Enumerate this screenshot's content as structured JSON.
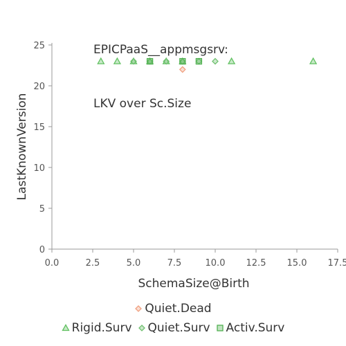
{
  "chart_data": {
    "type": "scatter",
    "title_lines": [
      "EPICPaaS__appmsgsrv:",
      "LKV over Sc.Size"
    ],
    "xlabel": "SchemaSize@Birth",
    "ylabel": "LastKnownVersion",
    "xlim": [
      0,
      17.5
    ],
    "ylim": [
      0,
      25
    ],
    "xticks": [
      0,
      2.5,
      5,
      7.5,
      10,
      12.5,
      15,
      17.5
    ],
    "xtick_labels": [
      "0.0",
      "2.5",
      "5.0",
      "7.5",
      "10.0",
      "12.5",
      "15.0",
      "17.5"
    ],
    "yticks": [
      0,
      5,
      10,
      15,
      20,
      25
    ],
    "ytick_labels": [
      "0",
      "5",
      "10",
      "15",
      "20",
      "25"
    ],
    "grid": false,
    "legend_position": "bottom",
    "series": [
      {
        "name": "Quiet.Dead",
        "marker": "diamond",
        "color": "#f0a080",
        "points": [
          [
            8,
            22
          ]
        ]
      },
      {
        "name": "Rigid.Surv",
        "marker": "triangle",
        "color": "#60c060",
        "points": [
          [
            3,
            23
          ],
          [
            4,
            23
          ],
          [
            5,
            23
          ],
          [
            6,
            23
          ],
          [
            7,
            23
          ],
          [
            8,
            23
          ],
          [
            11,
            23
          ],
          [
            16,
            23
          ]
        ]
      },
      {
        "name": "Quiet.Surv",
        "marker": "diamond",
        "color": "#70c070",
        "points": [
          [
            5,
            23
          ],
          [
            6,
            23
          ],
          [
            7,
            23
          ],
          [
            8,
            23
          ],
          [
            9,
            23
          ],
          [
            10,
            23
          ]
        ]
      },
      {
        "name": "Activ.Surv",
        "marker": "square",
        "color": "#50b050",
        "points": [
          [
            6,
            23
          ],
          [
            8,
            23
          ],
          [
            9,
            23
          ]
        ]
      }
    ],
    "legend_rows": [
      [
        "Quiet.Dead"
      ],
      [
        "Rigid.Surv",
        "Quiet.Surv",
        "Activ.Surv"
      ]
    ]
  }
}
